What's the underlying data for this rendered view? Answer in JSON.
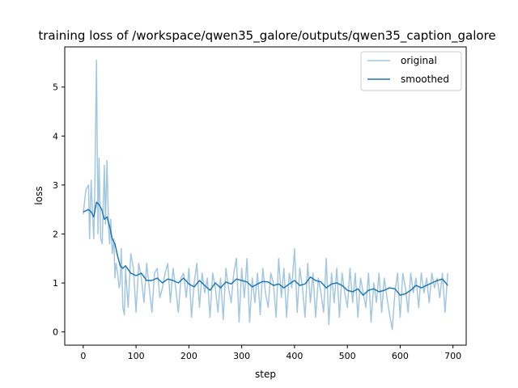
{
  "colors": {
    "original": "#a3c7e0",
    "smoothed": "#1f77b4",
    "axes": "#000000",
    "legend_border": "#cccccc"
  },
  "chart_data": {
    "type": "line",
    "title": "training loss of /workspace/qwen35_galore/outputs/qwen35_caption_galore",
    "xlabel": "step",
    "ylabel": "loss",
    "xlim": [
      -35,
      725
    ],
    "ylim": [
      -0.27,
      5.82
    ],
    "xticks": [
      0,
      100,
      200,
      300,
      400,
      500,
      600,
      700
    ],
    "yticks": [
      0,
      1,
      2,
      3,
      4,
      5
    ],
    "grid": false,
    "legend_position": "top-right",
    "series": [
      {
        "name": "original",
        "role": "raw",
        "x": [
          0,
          5,
          10,
          12,
          15,
          18,
          20,
          22,
          25,
          28,
          30,
          33,
          36,
          40,
          42,
          45,
          48,
          50,
          52,
          55,
          58,
          60,
          62,
          65,
          68,
          70,
          72,
          75,
          78,
          80,
          85,
          90,
          95,
          100,
          105,
          110,
          115,
          120,
          125,
          130,
          135,
          140,
          145,
          150,
          155,
          160,
          165,
          170,
          175,
          180,
          185,
          190,
          195,
          200,
          205,
          210,
          215,
          220,
          225,
          230,
          235,
          240,
          245,
          250,
          255,
          260,
          265,
          270,
          275,
          280,
          285,
          290,
          295,
          300,
          305,
          310,
          315,
          320,
          325,
          330,
          335,
          340,
          345,
          350,
          355,
          360,
          365,
          370,
          375,
          380,
          385,
          390,
          395,
          400,
          405,
          410,
          415,
          420,
          425,
          430,
          435,
          440,
          445,
          450,
          455,
          460,
          465,
          470,
          475,
          480,
          485,
          490,
          495,
          500,
          505,
          510,
          515,
          520,
          525,
          530,
          535,
          540,
          545,
          550,
          555,
          560,
          565,
          570,
          575,
          580,
          585,
          590,
          595,
          600,
          605,
          610,
          615,
          620,
          625,
          630,
          635,
          640,
          645,
          650,
          655,
          660,
          665,
          670,
          675,
          680,
          685,
          690
        ],
        "y": [
          2.4,
          2.9,
          3.0,
          1.9,
          3.1,
          2.3,
          1.9,
          3.0,
          5.55,
          2.0,
          3.55,
          1.9,
          1.8,
          3.4,
          2.2,
          3.5,
          2.1,
          1.8,
          2.3,
          1.6,
          1.9,
          1.1,
          1.4,
          1.2,
          0.9,
          1.0,
          1.7,
          0.5,
          0.35,
          1.3,
          0.5,
          1.6,
          1.3,
          0.4,
          1.4,
          1.1,
          0.6,
          1.4,
          0.9,
          0.4,
          1.2,
          1.3,
          0.7,
          0.9,
          1.2,
          1.4,
          0.6,
          1.3,
          0.9,
          0.4,
          1.1,
          1.2,
          0.7,
          1.3,
          0.3,
          1.0,
          1.4,
          0.5,
          1.2,
          0.8,
          1.1,
          0.3,
          1.2,
          0.9,
          0.4,
          1.1,
          0.25,
          1.3,
          0.9,
          0.6,
          1.2,
          1.5,
          0.2,
          1.3,
          0.7,
          1.5,
          0.2,
          1.1,
          0.6,
          1.2,
          0.35,
          1.3,
          0.8,
          0.5,
          1.2,
          1.0,
          0.3,
          1.5,
          0.7,
          1.3,
          0.3,
          1.2,
          0.9,
          1.7,
          0.4,
          1.3,
          0.9,
          0.3,
          1.4,
          0.6,
          1.2,
          0.3,
          1.1,
          0.8,
          0.4,
          1.5,
          0.15,
          1.2,
          0.6,
          1.3,
          0.3,
          1.2,
          0.8,
          0.5,
          1.3,
          0.6,
          1.2,
          0.3,
          1.1,
          0.8,
          0.5,
          1.2,
          0.2,
          1.0,
          0.6,
          1.2,
          0.4,
          1.1,
          0.7,
          0.35,
          0.05,
          0.8,
          1.2,
          0.3,
          1.2,
          0.9,
          0.4,
          1.2,
          0.8,
          1.1,
          0.5,
          1.2,
          0.8,
          1.1,
          0.6,
          1.2,
          0.9,
          1.1,
          0.7,
          1.2,
          0.4,
          1.2
        ]
      },
      {
        "name": "smoothed",
        "role": "smoothed",
        "x": [
          0,
          10,
          15,
          20,
          25,
          30,
          35,
          40,
          45,
          50,
          55,
          60,
          65,
          70,
          75,
          80,
          90,
          100,
          110,
          120,
          130,
          140,
          150,
          160,
          170,
          180,
          190,
          200,
          210,
          220,
          230,
          240,
          250,
          260,
          270,
          280,
          290,
          300,
          310,
          320,
          330,
          340,
          350,
          360,
          370,
          380,
          390,
          400,
          410,
          420,
          430,
          440,
          450,
          460,
          470,
          480,
          490,
          500,
          510,
          520,
          530,
          540,
          550,
          560,
          570,
          580,
          590,
          600,
          610,
          620,
          630,
          640,
          650,
          660,
          670,
          680,
          690
        ],
        "y": [
          2.45,
          2.5,
          2.45,
          2.35,
          2.65,
          2.6,
          2.5,
          2.3,
          2.35,
          2.15,
          1.9,
          1.8,
          1.55,
          1.35,
          1.3,
          1.35,
          1.2,
          1.15,
          1.2,
          1.05,
          1.05,
          1.1,
          1.0,
          1.08,
          1.05,
          1.0,
          1.1,
          0.98,
          0.92,
          1.05,
          0.95,
          0.85,
          1.0,
          0.9,
          1.02,
          0.98,
          1.08,
          1.05,
          1.02,
          0.92,
          0.98,
          1.03,
          1.02,
          0.95,
          0.98,
          0.9,
          0.98,
          1.05,
          0.95,
          0.98,
          1.12,
          1.05,
          1.02,
          0.9,
          0.98,
          1.0,
          0.95,
          0.85,
          0.82,
          0.88,
          0.75,
          0.85,
          0.88,
          0.82,
          0.85,
          0.9,
          0.88,
          0.75,
          0.78,
          0.85,
          0.95,
          0.9,
          0.95,
          1.0,
          1.05,
          1.08,
          0.95
        ]
      }
    ]
  }
}
